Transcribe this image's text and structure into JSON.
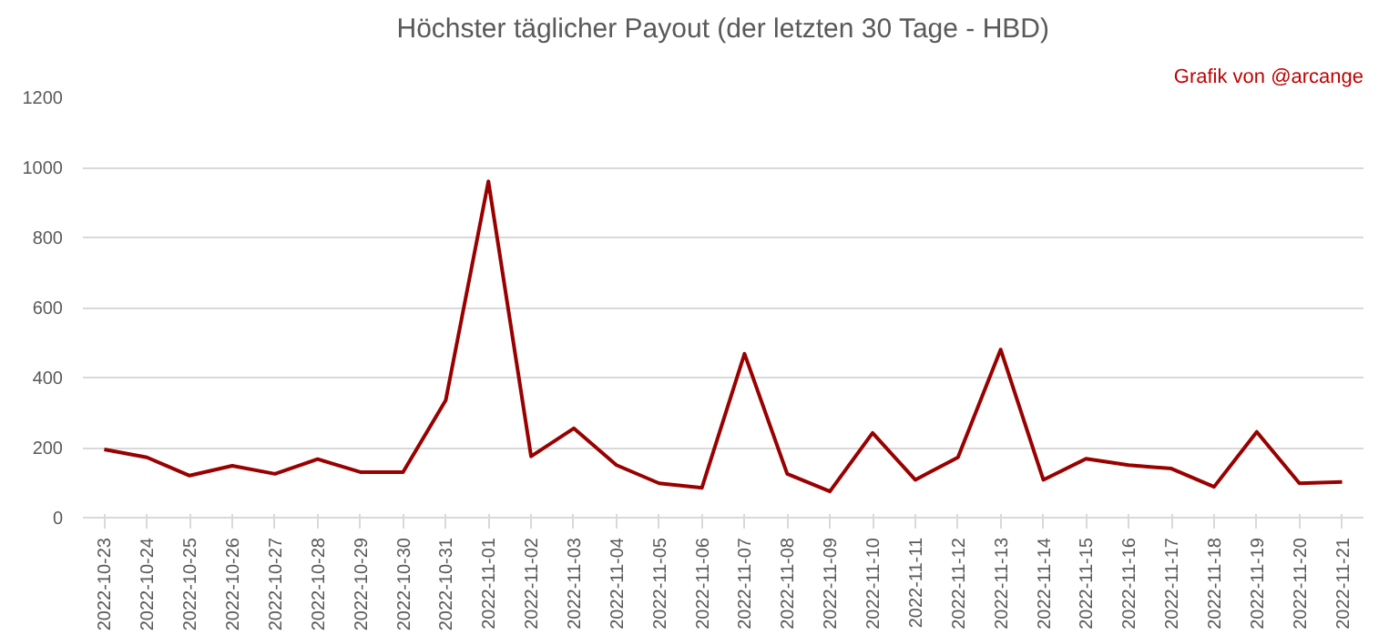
{
  "chart_data": {
    "type": "line",
    "title": "Höchster täglicher Payout (der letzten 30 Tage - HBD)",
    "annotations": [
      "Grafik von @arcange"
    ],
    "categories": [
      "2022-10-23",
      "2022-10-24",
      "2022-10-25",
      "2022-10-26",
      "2022-10-27",
      "2022-10-28",
      "2022-10-29",
      "2022-10-30",
      "2022-10-31",
      "2022-11-01",
      "2022-11-02",
      "2022-11-03",
      "2022-11-04",
      "2022-11-05",
      "2022-11-06",
      "2022-11-07",
      "2022-11-08",
      "2022-11-09",
      "2022-11-10",
      "2022-11-11",
      "2022-11-12",
      "2022-11-13",
      "2022-11-14",
      "2022-11-15",
      "2022-11-16",
      "2022-11-17",
      "2022-11-18",
      "2022-11-19",
      "2022-11-20",
      "2022-11-21"
    ],
    "series": [
      {
        "color": "#990000",
        "values": [
          195,
          172,
          120,
          148,
          125,
          167,
          130,
          130,
          335,
          960,
          175,
          255,
          150,
          98,
          85,
          468,
          125,
          75,
          242,
          108,
          172,
          480,
          108,
          168,
          150,
          140,
          88,
          245,
          98,
          102
        ]
      }
    ],
    "ylim": [
      0,
      1200
    ],
    "yticks": [
      0,
      200,
      400,
      600,
      800,
      1000,
      1200
    ],
    "grid": "y",
    "marker": "none",
    "line_style": "solid"
  }
}
